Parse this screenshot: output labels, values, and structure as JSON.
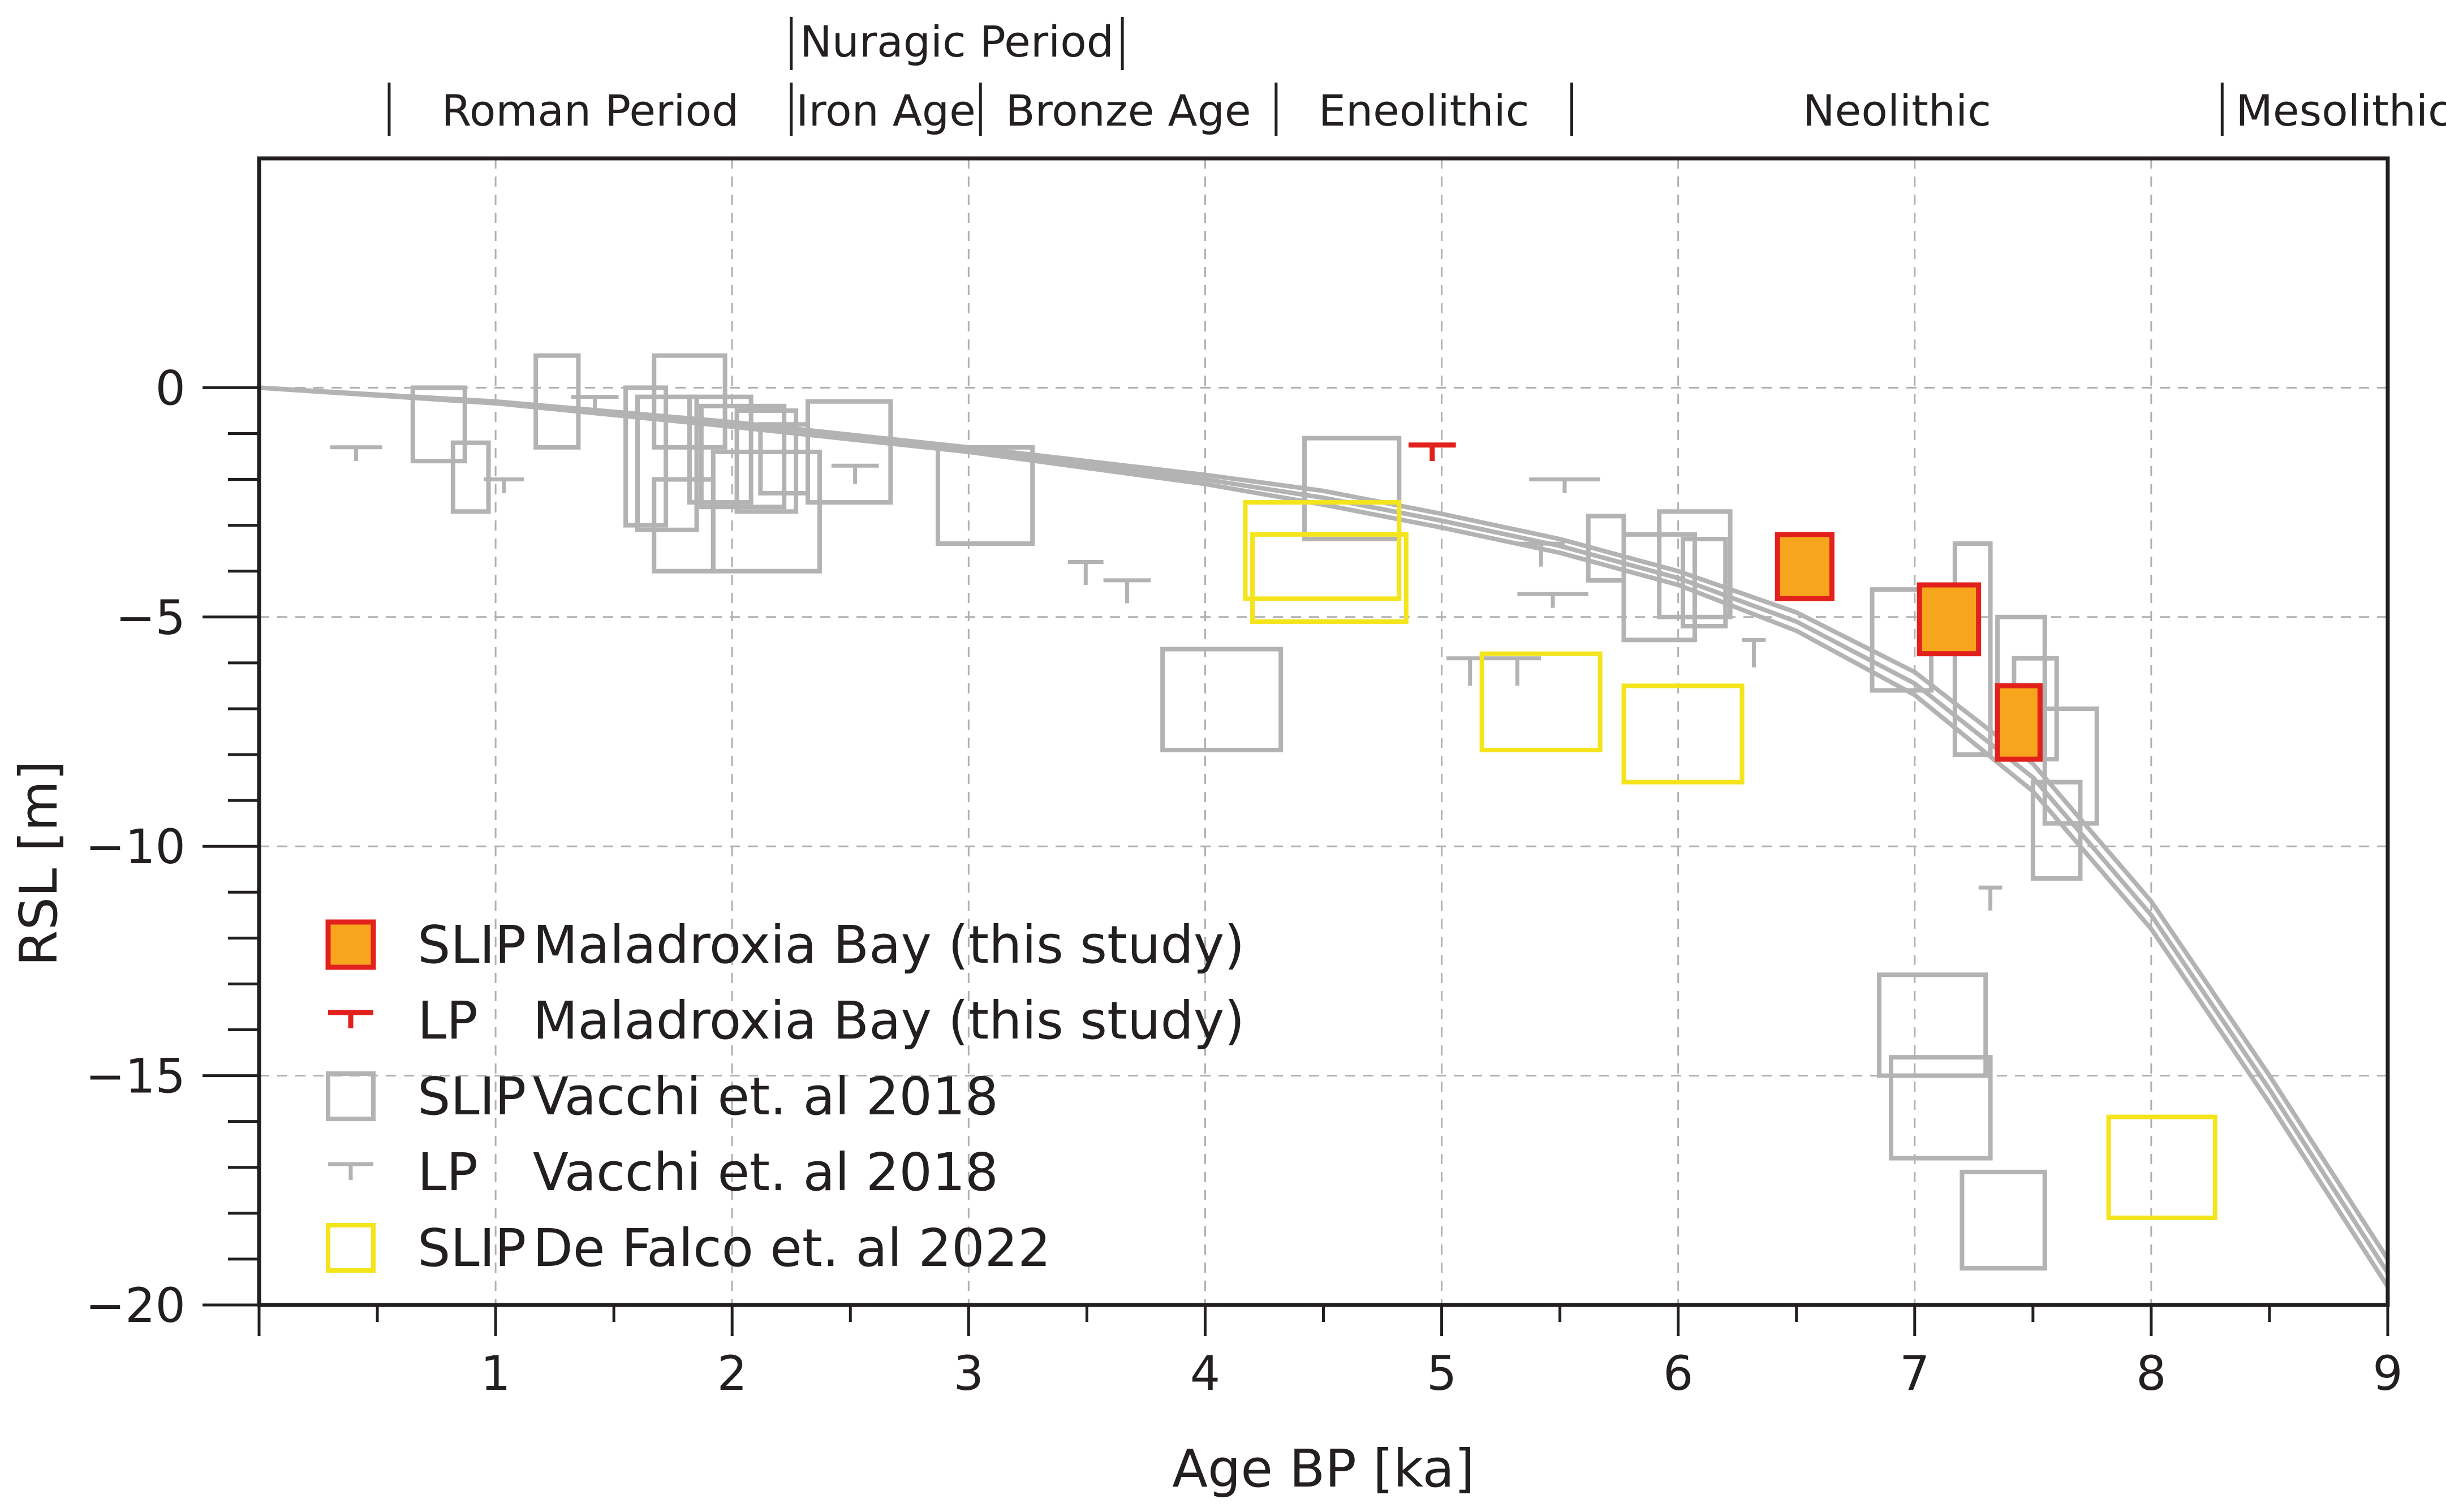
{
  "chart_data": {
    "type": "scatter",
    "xlabel": "Age BP [ka]",
    "ylabel": "RSL [m]",
    "xlim": [
      0,
      9
    ],
    "ylim": [
      -20,
      5
    ],
    "xticks": [
      1,
      2,
      3,
      4,
      5,
      6,
      7,
      8,
      9
    ],
    "yticks": [
      0,
      -5,
      -10,
      -15,
      -20
    ],
    "ytick_labels": [
      "0",
      "−5",
      "−10",
      "−15",
      "−20"
    ],
    "grid": true,
    "periods": {
      "lower": [
        "Roman Period",
        "Iron Age",
        "Bronze Age",
        "Eneolithic",
        "Neolithic",
        "Mesolithic"
      ],
      "upper": "Nuragic Period",
      "boundaries_ka": [
        0.55,
        2.25,
        3.05,
        4.3,
        5.55,
        8.3
      ],
      "nuragic_span_ka": [
        2.25,
        3.65
      ]
    },
    "model_curves": [
      {
        "name": "curve-1",
        "x": [
          0,
          1,
          2,
          3,
          4,
          4.5,
          5,
          5.5,
          6,
          6.5,
          7,
          7.5,
          8,
          8.5,
          9
        ],
        "y": [
          0,
          -0.3,
          -0.75,
          -1.3,
          -1.9,
          -2.25,
          -2.75,
          -3.3,
          -4,
          -4.9,
          -6.2,
          -8.2,
          -11.2,
          -15,
          -19
        ]
      },
      {
        "name": "curve-2",
        "x": [
          0,
          1,
          2,
          3,
          4,
          4.5,
          5,
          5.5,
          6,
          6.5,
          7,
          7.5,
          8,
          8.5,
          9
        ],
        "y": [
          0,
          -0.32,
          -0.8,
          -1.35,
          -2.0,
          -2.4,
          -2.9,
          -3.45,
          -4.15,
          -5.1,
          -6.45,
          -8.5,
          -11.5,
          -15.3,
          -19.3
        ]
      },
      {
        "name": "curve-3",
        "x": [
          0,
          1,
          2,
          3,
          4,
          4.5,
          5,
          5.5,
          6,
          6.5,
          7,
          7.5,
          8,
          8.5,
          9
        ],
        "y": [
          0,
          -0.34,
          -0.85,
          -1.4,
          -2.1,
          -2.55,
          -3.05,
          -3.6,
          -4.3,
          -5.3,
          -6.7,
          -8.8,
          -11.8,
          -15.6,
          -19.6
        ]
      }
    ],
    "series": [
      {
        "name": "SLIP Maladroxia Bay (this study)",
        "kind": "slip-box",
        "boxes": [
          {
            "x": [
              6.42,
              6.65
            ],
            "y": [
              -4.6,
              -3.2
            ]
          },
          {
            "x": [
              7.02,
              7.27
            ],
            "y": [
              -5.8,
              -4.3
            ]
          },
          {
            "x": [
              7.35,
              7.53
            ],
            "y": [
              -8.1,
              -6.5
            ]
          }
        ]
      },
      {
        "name": "LP Maladroxia Bay (this study)",
        "kind": "lp",
        "points": [
          {
            "x": [
              4.86,
              5.06
            ],
            "y": -1.25,
            "tick": 0.35
          }
        ]
      },
      {
        "name": "SLIP Vacchi et. al 2018",
        "kind": "slip-box",
        "boxes": [
          {
            "x": [
              0.65,
              0.87
            ],
            "y": [
              -1.6,
              0
            ]
          },
          {
            "x": [
              0.82,
              0.97
            ],
            "y": [
              -2.7,
              -1.2
            ]
          },
          {
            "x": [
              1.17,
              1.35
            ],
            "y": [
              -1.3,
              0.7
            ]
          },
          {
            "x": [
              1.55,
              1.72
            ],
            "y": [
              -3.0,
              0
            ]
          },
          {
            "x": [
              1.6,
              1.85
            ],
            "y": [
              -3.1,
              -0.2
            ]
          },
          {
            "x": [
              1.67,
              1.97
            ],
            "y": [
              -1.3,
              0.7
            ]
          },
          {
            "x": [
              1.67,
              1.92
            ],
            "y": [
              -4.0,
              -2.0
            ]
          },
          {
            "x": [
              1.82,
              2.08
            ],
            "y": [
              -2.5,
              -0.2
            ]
          },
          {
            "x": [
              1.87,
              2.22
            ],
            "y": [
              -2.6,
              -0.4
            ]
          },
          {
            "x": [
              1.92,
              2.37
            ],
            "y": [
              -4.0,
              -1.4
            ]
          },
          {
            "x": [
              2.02,
              2.27
            ],
            "y": [
              -2.7,
              -0.5
            ]
          },
          {
            "x": [
              2.12,
              2.32
            ],
            "y": [
              -2.3,
              -0.8
            ]
          },
          {
            "x": [
              2.32,
              2.67
            ],
            "y": [
              -2.5,
              -0.3
            ]
          },
          {
            "x": [
              2.87,
              3.27
            ],
            "y": [
              -3.4,
              -1.3
            ]
          },
          {
            "x": [
              3.82,
              4.32
            ],
            "y": [
              -7.9,
              -5.7
            ]
          },
          {
            "x": [
              4.42,
              4.82
            ],
            "y": [
              -3.3,
              -1.1
            ]
          },
          {
            "x": [
              5.62,
              5.77
            ],
            "y": [
              -4.2,
              -2.8
            ]
          },
          {
            "x": [
              5.77,
              6.07
            ],
            "y": [
              -5.5,
              -3.2
            ]
          },
          {
            "x": [
              5.92,
              6.22
            ],
            "y": [
              -5.0,
              -2.7
            ]
          },
          {
            "x": [
              6.02,
              6.2
            ],
            "y": [
              -5.2,
              -3.3
            ]
          },
          {
            "x": [
              6.82,
              7.07
            ],
            "y": [
              -6.6,
              -4.4
            ]
          },
          {
            "x": [
              7.17,
              7.32
            ],
            "y": [
              -8.0,
              -3.4
            ]
          },
          {
            "x": [
              7.35,
              7.55
            ],
            "y": [
              -8.0,
              -5.0
            ]
          },
          {
            "x": [
              7.42,
              7.6
            ],
            "y": [
              -8.1,
              -5.9
            ]
          },
          {
            "x": [
              7.55,
              7.77
            ],
            "y": [
              -9.5,
              -7.0
            ]
          },
          {
            "x": [
              7.5,
              7.7
            ],
            "y": [
              -10.7,
              -8.6
            ]
          },
          {
            "x": [
              6.85,
              7.3
            ],
            "y": [
              -15.0,
              -12.8
            ]
          },
          {
            "x": [
              6.9,
              7.32
            ],
            "y": [
              -16.8,
              -14.6
            ]
          },
          {
            "x": [
              7.2,
              7.55
            ],
            "y": [
              -19.2,
              -17.1
            ]
          }
        ]
      },
      {
        "name": "LP Vacchi et. al 2018",
        "kind": "lp",
        "points": [
          {
            "x": [
              0.3,
              0.52
            ],
            "y": -1.3,
            "tick": 0.3
          },
          {
            "x": [
              0.95,
              1.12
            ],
            "y": -2.0,
            "tick": 0.3
          },
          {
            "x": [
              1.32,
              1.52
            ],
            "y": -0.2,
            "tick": 0.4
          },
          {
            "x": [
              2.42,
              2.62
            ],
            "y": -1.7,
            "tick": 0.4
          },
          {
            "x": [
              3.42,
              3.57
            ],
            "y": -3.8,
            "tick": 0.5
          },
          {
            "x": [
              3.57,
              3.77
            ],
            "y": -4.2,
            "tick": 0.5
          },
          {
            "x": [
              5.02,
              5.22
            ],
            "y": -5.9,
            "tick": 0.6
          },
          {
            "x": [
              5.22,
              5.42
            ],
            "y": -5.9,
            "tick": 0.6
          },
          {
            "x": [
              5.32,
              5.52
            ],
            "y": -3.4,
            "tick": 0.5
          },
          {
            "x": [
              5.32,
              5.62
            ],
            "y": -4.5,
            "tick": 0.3
          },
          {
            "x": [
              5.37,
              5.67
            ],
            "y": -2.0,
            "tick": 0.3
          },
          {
            "x": [
              6.27,
              6.37
            ],
            "y": -5.5,
            "tick": 0.6
          },
          {
            "x": [
              7.27,
              7.37
            ],
            "y": -10.9,
            "tick": 0.5
          }
        ]
      },
      {
        "name": "SLIP De Falco et. al 2022",
        "kind": "slip-box",
        "boxes": [
          {
            "x": [
              4.17,
              4.82
            ],
            "y": [
              -4.6,
              -2.5
            ]
          },
          {
            "x": [
              4.2,
              4.85
            ],
            "y": [
              -5.1,
              -3.2
            ]
          },
          {
            "x": [
              5.17,
              5.67
            ],
            "y": [
              -7.9,
              -5.8
            ]
          },
          {
            "x": [
              5.77,
              6.27
            ],
            "y": [
              -8.6,
              -6.5
            ]
          },
          {
            "x": [
              7.82,
              8.27
            ],
            "y": [
              -18.1,
              -15.9
            ]
          }
        ]
      }
    ],
    "legend": {
      "position": "lower-left",
      "entries": [
        {
          "prefix": "SLIP",
          "text": "Maladroxia Bay (this study)"
        },
        {
          "prefix": "LP",
          "text": "Maladroxia Bay (this study)"
        },
        {
          "prefix": "SLIP",
          "text": "Vacchi et. al 2018"
        },
        {
          "prefix": "LP",
          "text": "Vacchi et. al 2018"
        },
        {
          "prefix": "SLIP",
          "text": "De Falco et. al 2022"
        }
      ]
    },
    "colors": {
      "axis": "#231f20",
      "grid": "#b0b0b0",
      "model_curve": "#b3b3b3",
      "vacchi": "#b3b3b3",
      "maladroxia_fill": "#f7a51c",
      "maladroxia_edge": "#e2211c",
      "defalco": "#f4e41c"
    }
  }
}
